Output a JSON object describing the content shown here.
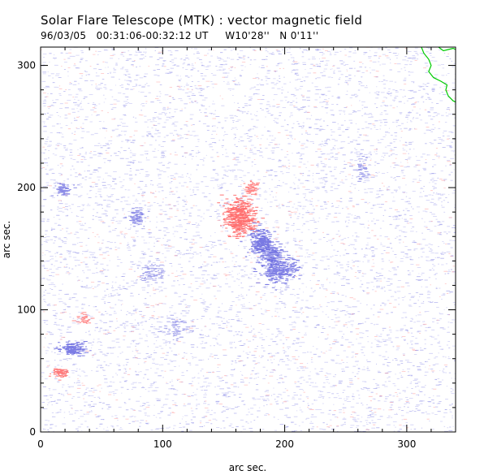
{
  "title": "Solar Flare Telescope (MTK) : vector magnetic field",
  "subtitle": "96/03/05   00:31:06-00:32:12 UT     W10'28''   N 0'11''",
  "colors": {
    "positive": "#ff6666",
    "negative": "#6b6be0",
    "contour": "#00cc00",
    "axis": "#000000"
  },
  "chart_data": {
    "type": "heatmap",
    "title": "",
    "xlabel": "arc sec.",
    "ylabel": "arc sec.",
    "xlim": [
      0,
      340
    ],
    "ylim": [
      0,
      315
    ],
    "x_ticks": [
      0,
      100,
      200,
      300
    ],
    "y_ticks": [
      0,
      100,
      200,
      300
    ],
    "grid": false,
    "legend": "none",
    "regions": [
      {
        "polarity": "positive",
        "center": [
          162,
          176
        ],
        "radius": [
          11,
          14
        ],
        "intensity": 0.95
      },
      {
        "polarity": "positive",
        "center": [
          172,
          200
        ],
        "radius": [
          5,
          5
        ],
        "intensity": 0.7
      },
      {
        "polarity": "negative",
        "center": [
          180,
          155
        ],
        "radius": [
          9,
          10
        ],
        "intensity": 0.9
      },
      {
        "polarity": "negative",
        "center": [
          195,
          133
        ],
        "radius": [
          13,
          9
        ],
        "intensity": 0.8
      },
      {
        "polarity": "negative",
        "center": [
          188,
          145
        ],
        "radius": [
          8,
          8
        ],
        "intensity": 0.7
      },
      {
        "polarity": "negative",
        "center": [
          25,
          68
        ],
        "radius": [
          10,
          5
        ],
        "intensity": 0.85
      },
      {
        "polarity": "positive",
        "center": [
          15,
          48
        ],
        "radius": [
          7,
          4
        ],
        "intensity": 0.8
      },
      {
        "polarity": "positive",
        "center": [
          35,
          92
        ],
        "radius": [
          5,
          4
        ],
        "intensity": 0.55
      },
      {
        "polarity": "negative",
        "center": [
          18,
          198
        ],
        "radius": [
          6,
          6
        ],
        "intensity": 0.65
      },
      {
        "polarity": "negative",
        "center": [
          77,
          176
        ],
        "radius": [
          6,
          6
        ],
        "intensity": 0.6
      },
      {
        "polarity": "negative",
        "center": [
          90,
          130
        ],
        "radius": [
          10,
          8
        ],
        "intensity": 0.3
      },
      {
        "polarity": "negative",
        "center": [
          262,
          215
        ],
        "radius": [
          5,
          8
        ],
        "intensity": 0.35
      },
      {
        "polarity": "negative",
        "center": [
          110,
          85
        ],
        "radius": [
          8,
          10
        ],
        "intensity": 0.25
      }
    ],
    "contour": [
      [
        312,
        315
      ],
      [
        314,
        310
      ],
      [
        318,
        305
      ],
      [
        320,
        300
      ],
      [
        318,
        295
      ],
      [
        322,
        290
      ],
      [
        328,
        287
      ],
      [
        333,
        284
      ],
      [
        332,
        280
      ],
      [
        334,
        275
      ],
      [
        338,
        271
      ],
      [
        340,
        270
      ]
    ],
    "contour_top": [
      [
        326,
        315
      ],
      [
        330,
        312
      ],
      [
        334,
        313
      ],
      [
        338,
        314
      ],
      [
        340,
        313
      ]
    ]
  }
}
